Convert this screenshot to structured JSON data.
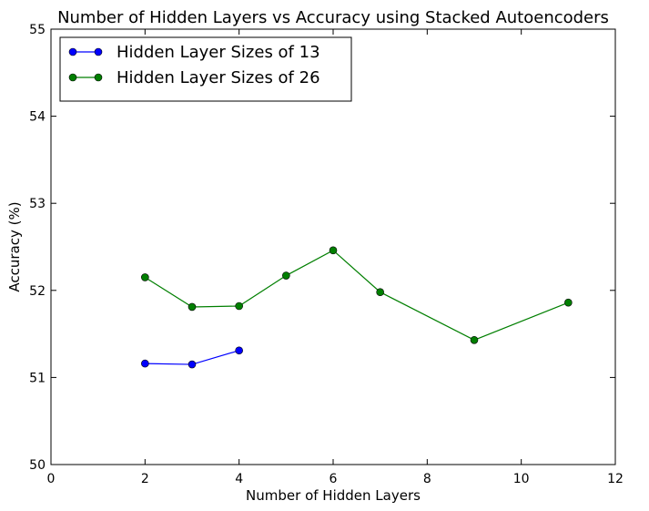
{
  "chart_data": {
    "type": "line",
    "title": "Number of Hidden Layers vs Accuracy using Stacked Autoencoders",
    "xlabel": "Number of Hidden Layers",
    "ylabel": "Accuracy (%)",
    "xlim": [
      0,
      12
    ],
    "ylim": [
      50,
      55
    ],
    "xticks": [
      0,
      2,
      4,
      6,
      8,
      10,
      12
    ],
    "yticks": [
      50,
      51,
      52,
      53,
      54,
      55
    ],
    "grid": false,
    "legend_position": "top-left",
    "series": [
      {
        "name": "Hidden Layer Sizes of 13",
        "color": "#0000ff",
        "x": [
          2,
          3,
          4
        ],
        "y": [
          51.16,
          51.15,
          51.31
        ]
      },
      {
        "name": "Hidden Layer Sizes of 26",
        "color": "#007f00",
        "x": [
          2,
          3,
          4,
          5,
          6,
          7,
          9,
          11
        ],
        "y": [
          52.15,
          51.81,
          51.82,
          52.17,
          52.46,
          51.98,
          51.43,
          51.86
        ]
      }
    ]
  }
}
